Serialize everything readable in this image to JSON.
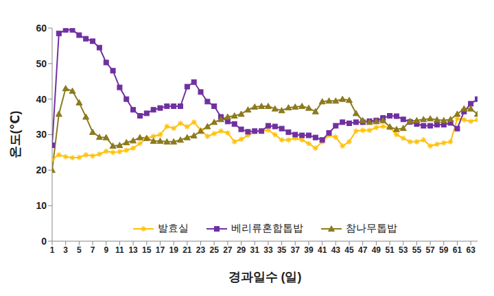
{
  "chart_data": {
    "type": "line",
    "x_label": "경과일수 (일)",
    "y_label": "온도(℃)",
    "x": [
      1,
      2,
      3,
      4,
      5,
      6,
      7,
      8,
      9,
      10,
      11,
      12,
      13,
      14,
      15,
      16,
      17,
      18,
      19,
      20,
      21,
      22,
      23,
      24,
      25,
      26,
      27,
      28,
      29,
      30,
      31,
      32,
      33,
      34,
      35,
      36,
      37,
      38,
      39,
      40,
      41,
      42,
      43,
      44,
      45,
      46,
      47,
      48,
      49,
      50,
      51,
      52,
      53,
      54,
      55,
      56,
      57,
      58,
      59,
      60,
      61,
      62,
      63,
      64
    ],
    "series": [
      {
        "name": "발효실",
        "color": "#FFC000",
        "marker": "asterisk",
        "values": [
          23,
          24.3,
          23.8,
          23.5,
          23.6,
          24.3,
          24,
          24.5,
          25.3,
          25,
          25.2,
          25.6,
          26.2,
          27.5,
          29,
          29.5,
          30,
          32.3,
          31.8,
          33.2,
          32.2,
          33.5,
          31.3,
          29.5,
          30.3,
          31,
          30.5,
          28,
          28.7,
          29.8,
          30.8,
          31,
          31.3,
          30,
          28.5,
          28.5,
          29,
          28.5,
          27.5,
          26.2,
          28,
          29.8,
          29.3,
          26.8,
          28,
          31,
          31.2,
          31.2,
          32,
          32.3,
          32,
          30,
          29,
          28,
          28,
          28.5,
          26.8,
          27.3,
          27.7,
          28,
          34.5,
          34.2,
          33.7,
          34.2
        ]
      },
      {
        "name": "베리류혼합톱밥",
        "color": "#7030A0",
        "marker": "square",
        "values": [
          27,
          58.5,
          59.5,
          59.5,
          58,
          57,
          56.3,
          54.5,
          50.3,
          48,
          43.3,
          40,
          37,
          35.3,
          36,
          37,
          37.5,
          38,
          38,
          38,
          43.5,
          44.8,
          42,
          39.3,
          38,
          35,
          33.7,
          33,
          31.5,
          30.8,
          31,
          31,
          32.5,
          32.3,
          31.7,
          30.7,
          30,
          29.8,
          29.8,
          29.2,
          28.5,
          30.5,
          32.5,
          33.5,
          33.2,
          33.5,
          33.5,
          33.8,
          34,
          34.7,
          35.3,
          35.2,
          34.3,
          33.6,
          33,
          32.5,
          32.5,
          32.8,
          32.8,
          33.3,
          31.7,
          36.5,
          38.7,
          40
        ]
      },
      {
        "name": "참나무톱밥",
        "color": "#8C7A1E",
        "marker": "triangle",
        "values": [
          20,
          35.8,
          43,
          42.3,
          39,
          35,
          30.7,
          29.3,
          29.2,
          26.8,
          27,
          27.8,
          28.3,
          29.2,
          29,
          28.2,
          28.2,
          28,
          28,
          28.5,
          29.2,
          29.7,
          31,
          32.3,
          33.5,
          34.3,
          35,
          35.3,
          35.8,
          37,
          37.8,
          38,
          38,
          37.3,
          36.8,
          37.6,
          37.8,
          38,
          37.5,
          36.5,
          39.3,
          39.5,
          39.5,
          40,
          39.7,
          36,
          34,
          33.5,
          33.7,
          34,
          32.2,
          31.5,
          31.8,
          33.8,
          34,
          34.3,
          34.5,
          34.2,
          34,
          34.3,
          35.8,
          37.3,
          37.3,
          35.8
        ]
      }
    ],
    "xlim": [
      1,
      64
    ],
    "xticks": [
      1,
      3,
      5,
      7,
      9,
      11,
      13,
      15,
      17,
      19,
      21,
      23,
      25,
      27,
      29,
      31,
      33,
      35,
      37,
      39,
      41,
      43,
      45,
      47,
      49,
      51,
      53,
      55,
      57,
      59,
      61,
      63
    ],
    "ylim": [
      0,
      60
    ],
    "yticks": [
      0,
      10,
      20,
      30,
      40,
      50,
      60
    ],
    "grid": false,
    "legend": "bottom"
  }
}
